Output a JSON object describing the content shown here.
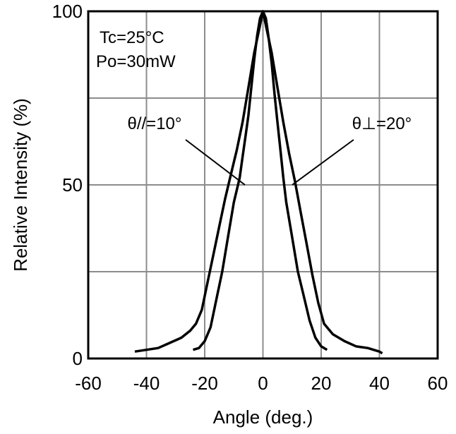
{
  "chart_data": {
    "type": "line",
    "title": "",
    "xlabel": "Angle (deg.)",
    "ylabel": "Relative Intensity (%)",
    "xlim": [
      -60,
      60
    ],
    "ylim": [
      0,
      100
    ],
    "x_ticks": [
      -60,
      -40,
      -20,
      0,
      20,
      40,
      60
    ],
    "y_ticks": [
      0,
      50,
      100
    ],
    "x_grid": [
      -40,
      -20,
      0,
      20,
      40
    ],
    "y_grid": [
      25,
      50,
      75
    ],
    "grid": true,
    "annotations": {
      "conditions": [
        "Tc=25°C",
        "Po=30mW"
      ],
      "parallel_label": "θ//=10°",
      "perp_label": "θ⊥=20°"
    },
    "series": [
      {
        "x": [
          -24,
          -22,
          -20,
          -18,
          -16,
          -14,
          -12,
          -10,
          -8,
          -7,
          -6,
          -5,
          -4,
          -3,
          -2,
          -1,
          0,
          1,
          2,
          3,
          4,
          5,
          6,
          7,
          8,
          10,
          12,
          14,
          16,
          18,
          20,
          22
        ],
        "y": [
          2.5,
          3,
          5,
          9,
          17,
          25,
          35,
          45,
          52,
          58,
          64,
          70,
          78,
          86,
          93,
          98,
          100,
          98,
          92,
          85,
          76,
          68,
          60,
          52,
          45,
          35,
          25,
          18,
          11,
          6,
          3.5,
          2.5
        ]
      },
      {
        "x": [
          -44,
          -40,
          -36,
          -32,
          -28,
          -25,
          -23,
          -21,
          -19,
          -17,
          -15,
          -13,
          -11,
          -9,
          -7,
          -5,
          -3,
          -1,
          0,
          1,
          3,
          5,
          7,
          9,
          11,
          13,
          15,
          17,
          19,
          21,
          24,
          28,
          32,
          36,
          40,
          41
        ],
        "y": [
          2,
          2.5,
          3,
          4.5,
          6,
          8,
          10,
          14,
          22,
          30,
          38,
          46,
          53,
          60,
          68,
          78,
          88,
          96,
          100,
          96,
          88,
          78,
          68,
          59,
          51,
          42,
          33,
          24,
          16,
          10,
          7,
          5,
          3.5,
          3,
          2,
          1.5
        ]
      }
    ]
  }
}
